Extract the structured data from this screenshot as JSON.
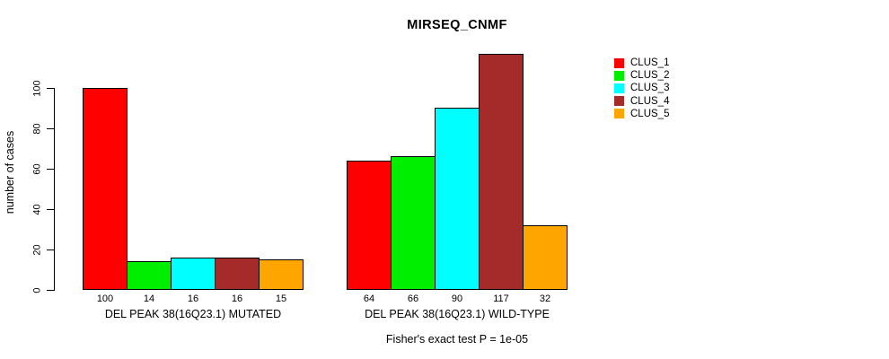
{
  "chart_data": {
    "type": "bar",
    "title": "MIRSEQ_CNMF",
    "xlabel": "",
    "ylabel": "number of cases",
    "ylim": [
      0,
      120
    ],
    "yticks": [
      0,
      20,
      40,
      60,
      80,
      100
    ],
    "grid": false,
    "legend_position": "right",
    "categories": [
      "DEL PEAK 38(16Q23.1) MUTATED",
      "DEL PEAK 38(16Q23.1) WILD-TYPE"
    ],
    "series": [
      {
        "name": "CLUS_1",
        "color": "#FF0000",
        "values": [
          100,
          64
        ]
      },
      {
        "name": "CLUS_2",
        "color": "#00EE00",
        "values": [
          14,
          66
        ]
      },
      {
        "name": "CLUS_3",
        "color": "#00FFFF",
        "values": [
          16,
          90
        ]
      },
      {
        "name": "CLUS_4",
        "color": "#A52A2A",
        "values": [
          16,
          117
        ]
      },
      {
        "name": "CLUS_5",
        "color": "#FFA500",
        "values": [
          15,
          32
        ]
      }
    ],
    "groups": [
      {
        "label": "DEL PEAK 38(16Q23.1) MUTATED",
        "values": [
          100,
          14,
          16,
          16,
          15
        ],
        "value_labels": [
          "100",
          "14",
          "16",
          "16",
          "15"
        ]
      },
      {
        "label": "DEL PEAK 38(16Q23.1) WILD-TYPE",
        "values": [
          64,
          66,
          90,
          117,
          32
        ],
        "value_labels": [
          "64",
          "66",
          "90",
          "117",
          "32"
        ]
      }
    ],
    "legend": [
      {
        "label": "CLUS_1",
        "color": "#FF0000"
      },
      {
        "label": "CLUS_2",
        "color": "#00EE00"
      },
      {
        "label": "CLUS_3",
        "color": "#00FFFF"
      },
      {
        "label": "CLUS_4",
        "color": "#A52A2A"
      },
      {
        "label": "CLUS_5",
        "color": "#FFA500"
      }
    ],
    "annotation": "Fisher's exact test P = 1e-05"
  }
}
